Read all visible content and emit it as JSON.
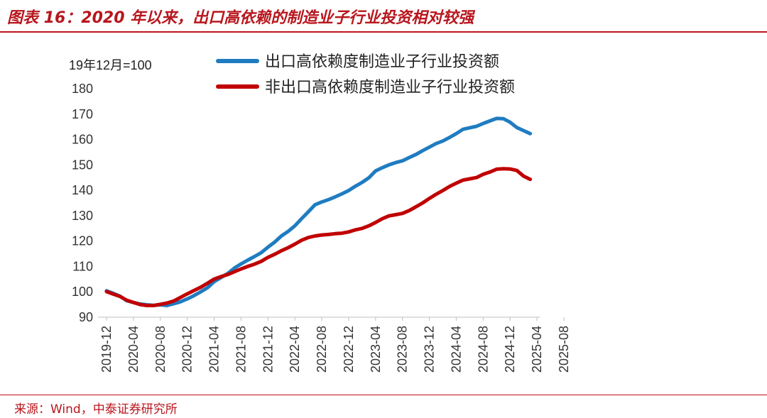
{
  "header": {
    "title": "图表 16：2020 年以来，出口高依赖的制造业子行业投资相对较强"
  },
  "footer": {
    "source": "来源：Wind，中泰证券研究所"
  },
  "colors": {
    "accent": "#c0141c",
    "series_blue": "#1f7cc1",
    "series_red": "#c00000"
  },
  "chart_data": {
    "type": "line",
    "title": "2020 年以来，出口高依赖的制造业子行业投资相对较强",
    "unit_label": "19年12月=100",
    "ylim": [
      90,
      180
    ],
    "yticks": [
      90,
      100,
      110,
      120,
      130,
      140,
      150,
      160,
      170,
      180
    ],
    "xticks": [
      "2019-12",
      "2020-04",
      "2020-08",
      "2020-12",
      "2021-04",
      "2021-08",
      "2021-12",
      "2022-04",
      "2022-08",
      "2022-12",
      "2023-04",
      "2023-08",
      "2023-12",
      "2024-04",
      "2024-08",
      "2024-12",
      "2025-04",
      "2025-08"
    ],
    "x_start": "2019-12",
    "legend_position": "top-center",
    "series": [
      {
        "name": "出口高依赖度制造业子行业投资额",
        "color": "#1f7cc1",
        "values": [
          100.4,
          99.4,
          98.3,
          96.5,
          95.8,
          95.2,
          94.9,
          94.7,
          94.9,
          94.6,
          95.3,
          96.1,
          97.2,
          98.5,
          100.0,
          101.6,
          104.0,
          105.6,
          107.2,
          109.3,
          111.0,
          112.5,
          113.9,
          115.4,
          117.6,
          119.6,
          122.0,
          123.8,
          126.0,
          128.8,
          131.5,
          134.3,
          135.4,
          136.3,
          137.4,
          138.6,
          139.9,
          141.6,
          143.1,
          144.9,
          147.6,
          148.9,
          150.0,
          150.9,
          151.6,
          152.9,
          154.1,
          155.6,
          157.0,
          158.4,
          159.4,
          160.8,
          162.3,
          164.0,
          164.6,
          165.2,
          166.3,
          167.3,
          168.3,
          168.2,
          166.8,
          164.7,
          163.5,
          162.3
        ]
      },
      {
        "name": "非出口高依赖度制造业子行业投资额",
        "color": "#c00000",
        "values": [
          100.1,
          99.1,
          98.2,
          96.7,
          95.8,
          95.0,
          94.6,
          94.6,
          95.1,
          95.6,
          96.4,
          97.8,
          99.2,
          100.5,
          101.8,
          103.4,
          105.0,
          106.0,
          106.8,
          107.9,
          109.0,
          110.0,
          110.9,
          112.0,
          113.6,
          114.8,
          116.2,
          117.4,
          118.8,
          120.3,
          121.4,
          122.0,
          122.4,
          122.6,
          122.9,
          123.1,
          123.6,
          124.4,
          125.0,
          126.0,
          127.3,
          128.8,
          129.9,
          130.4,
          130.9,
          132.0,
          133.5,
          135.0,
          136.8,
          138.4,
          139.9,
          141.5,
          142.8,
          144.0,
          144.5,
          145.0,
          146.3,
          147.2,
          148.3,
          148.5,
          148.4,
          147.8,
          145.6,
          144.3
        ]
      }
    ]
  }
}
